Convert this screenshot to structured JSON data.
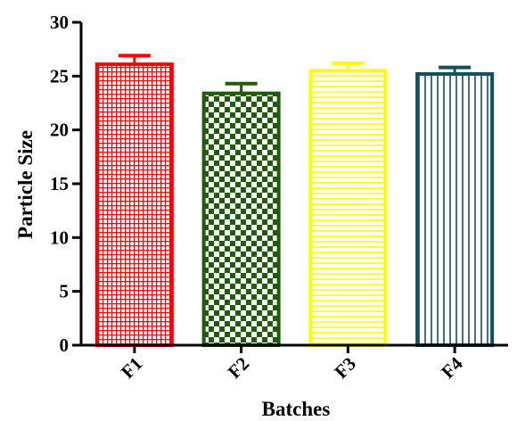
{
  "chart_data": {
    "type": "bar",
    "title": "",
    "xlabel": "Batches",
    "ylabel": "Particle Size",
    "ylim": [
      0,
      30
    ],
    "yticks": [
      0,
      5,
      10,
      15,
      20,
      25,
      30
    ],
    "categories": [
      "F1",
      "F2",
      "F3",
      "F4"
    ],
    "values": [
      26.1,
      23.4,
      25.5,
      25.2
    ],
    "errors": [
      0.8,
      0.9,
      0.7,
      0.6
    ],
    "colors": [
      "#ff0000",
      "#1f5c0a",
      "#ffff00",
      "#134e5e"
    ],
    "patterns": [
      "fine-grid",
      "checker",
      "horizontal-lines",
      "vertical-lines"
    ],
    "grid": false,
    "legend": "none"
  }
}
